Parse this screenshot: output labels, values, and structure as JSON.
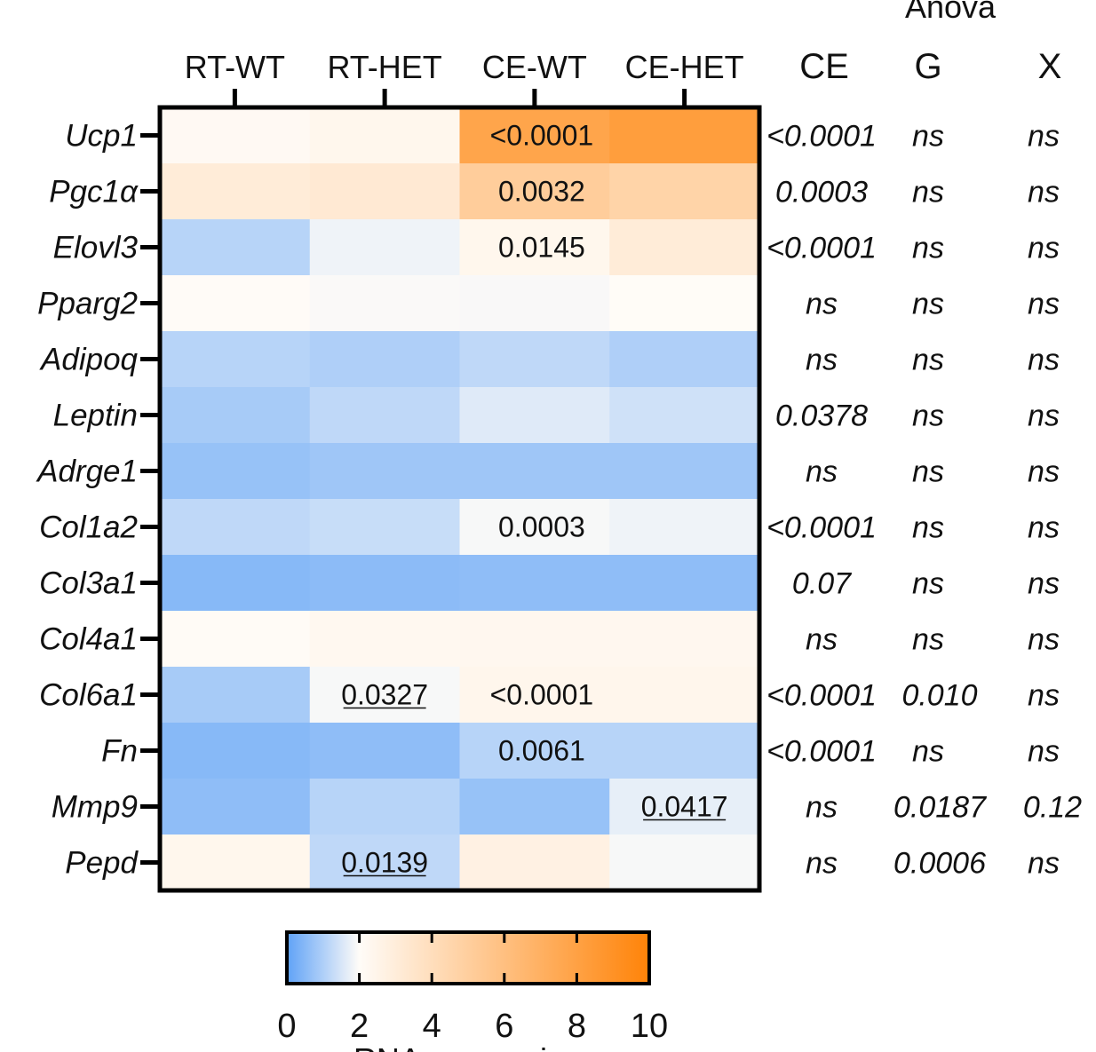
{
  "chart_data": {
    "type": "heatmap",
    "columns": [
      "RT-WT",
      "RT-HET",
      "CE-WT",
      "CE-HET"
    ],
    "rows": [
      "Ucp1",
      "Pgc1α",
      "Elovl3",
      "Pparg2",
      "Adipoq",
      "Leptin",
      "Adrge1",
      "Col1a2",
      "Col3a1",
      "Col4a1",
      "Col6a1",
      "Fn",
      "Mmp9",
      "Pepd"
    ],
    "values": [
      [
        1.2,
        1.4,
        7.5,
        8.0
      ],
      [
        2.2,
        2.4,
        4.5,
        4.0
      ],
      [
        0.55,
        0.9,
        1.4,
        2.2
      ],
      [
        1.05,
        0.97,
        0.96,
        1.03
      ],
      [
        0.55,
        0.5,
        0.6,
        0.5
      ],
      [
        0.45,
        0.6,
        0.8,
        0.7
      ],
      [
        0.35,
        0.4,
        0.4,
        0.4
      ],
      [
        0.6,
        0.65,
        0.95,
        0.9
      ],
      [
        0.25,
        0.28,
        0.3,
        0.3
      ],
      [
        1.08,
        1.3,
        1.35,
        1.35
      ],
      [
        0.45,
        0.95,
        1.45,
        1.45
      ],
      [
        0.25,
        0.3,
        0.55,
        0.55
      ],
      [
        0.3,
        0.55,
        0.35,
        0.85
      ],
      [
        1.4,
        0.6,
        1.8,
        0.95
      ]
    ],
    "cell_labels": [
      {
        "row": 0,
        "col": 2,
        "text": "<0.0001",
        "underline": false
      },
      {
        "row": 1,
        "col": 2,
        "text": "0.0032",
        "underline": false
      },
      {
        "row": 2,
        "col": 2,
        "text": "0.0145",
        "underline": false
      },
      {
        "row": 7,
        "col": 2,
        "text": "0.0003",
        "underline": false
      },
      {
        "row": 10,
        "col": 1,
        "text": "0.0327",
        "underline": true
      },
      {
        "row": 10,
        "col": 2,
        "text": "<0.0001",
        "underline": false
      },
      {
        "row": 11,
        "col": 2,
        "text": "0.0061",
        "underline": false
      },
      {
        "row": 12,
        "col": 3,
        "text": "0.0417",
        "underline": true
      },
      {
        "row": 13,
        "col": 1,
        "text": "0.0139",
        "underline": true
      }
    ],
    "anova": {
      "title": "Anova",
      "headers": [
        "CE",
        "G",
        "X"
      ],
      "rows": [
        [
          "<0.0001",
          "ns",
          "ns"
        ],
        [
          "0.0003",
          "ns",
          "ns"
        ],
        [
          "<0.0001",
          "ns",
          "ns"
        ],
        [
          "ns",
          "ns",
          "ns"
        ],
        [
          "ns",
          "ns",
          "ns"
        ],
        [
          "0.0378",
          "ns",
          "ns"
        ],
        [
          "ns",
          "ns",
          "ns"
        ],
        [
          "<0.0001",
          "ns",
          "ns"
        ],
        [
          "0.07",
          "ns",
          "ns"
        ],
        [
          "ns",
          "ns",
          "ns"
        ],
        [
          "<0.0001",
          "0.010",
          "ns"
        ],
        [
          "<0.0001",
          "ns",
          "ns"
        ],
        [
          "ns",
          "0.0187",
          "0.12"
        ],
        [
          "ns",
          "0.0006",
          "ns"
        ]
      ]
    },
    "colorbar": {
      "range": [
        0,
        10
      ],
      "ticks": [
        "0",
        "2",
        "4",
        "6",
        "8",
        "10"
      ],
      "label": "RNA expression",
      "colors": {
        "low": "#5fa2f7",
        "mid": "#fffcf8",
        "high": "#ff8308"
      }
    }
  }
}
